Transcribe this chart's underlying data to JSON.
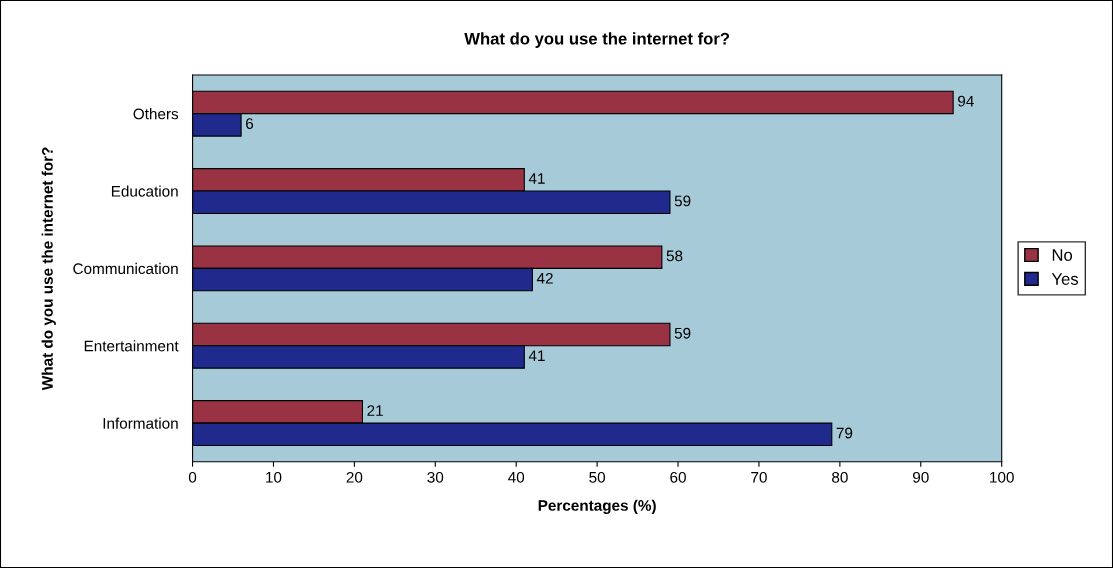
{
  "chart_data": {
    "type": "bar",
    "orientation": "horizontal",
    "title": "What do you use the internet for?",
    "xlabel": "Percentages (%)",
    "ylabel": "What do you use the internet for?",
    "categories": [
      "Others",
      "Education",
      "Communication",
      "Entertainment",
      "Information"
    ],
    "series": [
      {
        "name": "No",
        "color": "#993344",
        "values": [
          94,
          41,
          58,
          59,
          21
        ]
      },
      {
        "name": "Yes",
        "color": "#1f2a8c",
        "values": [
          6,
          59,
          42,
          41,
          79
        ]
      }
    ],
    "xlim": [
      0,
      100
    ],
    "xticks": [
      0,
      10,
      20,
      30,
      40,
      50,
      60,
      70,
      80,
      90,
      100
    ],
    "grid": false,
    "legend": "right",
    "data_labels": true
  }
}
